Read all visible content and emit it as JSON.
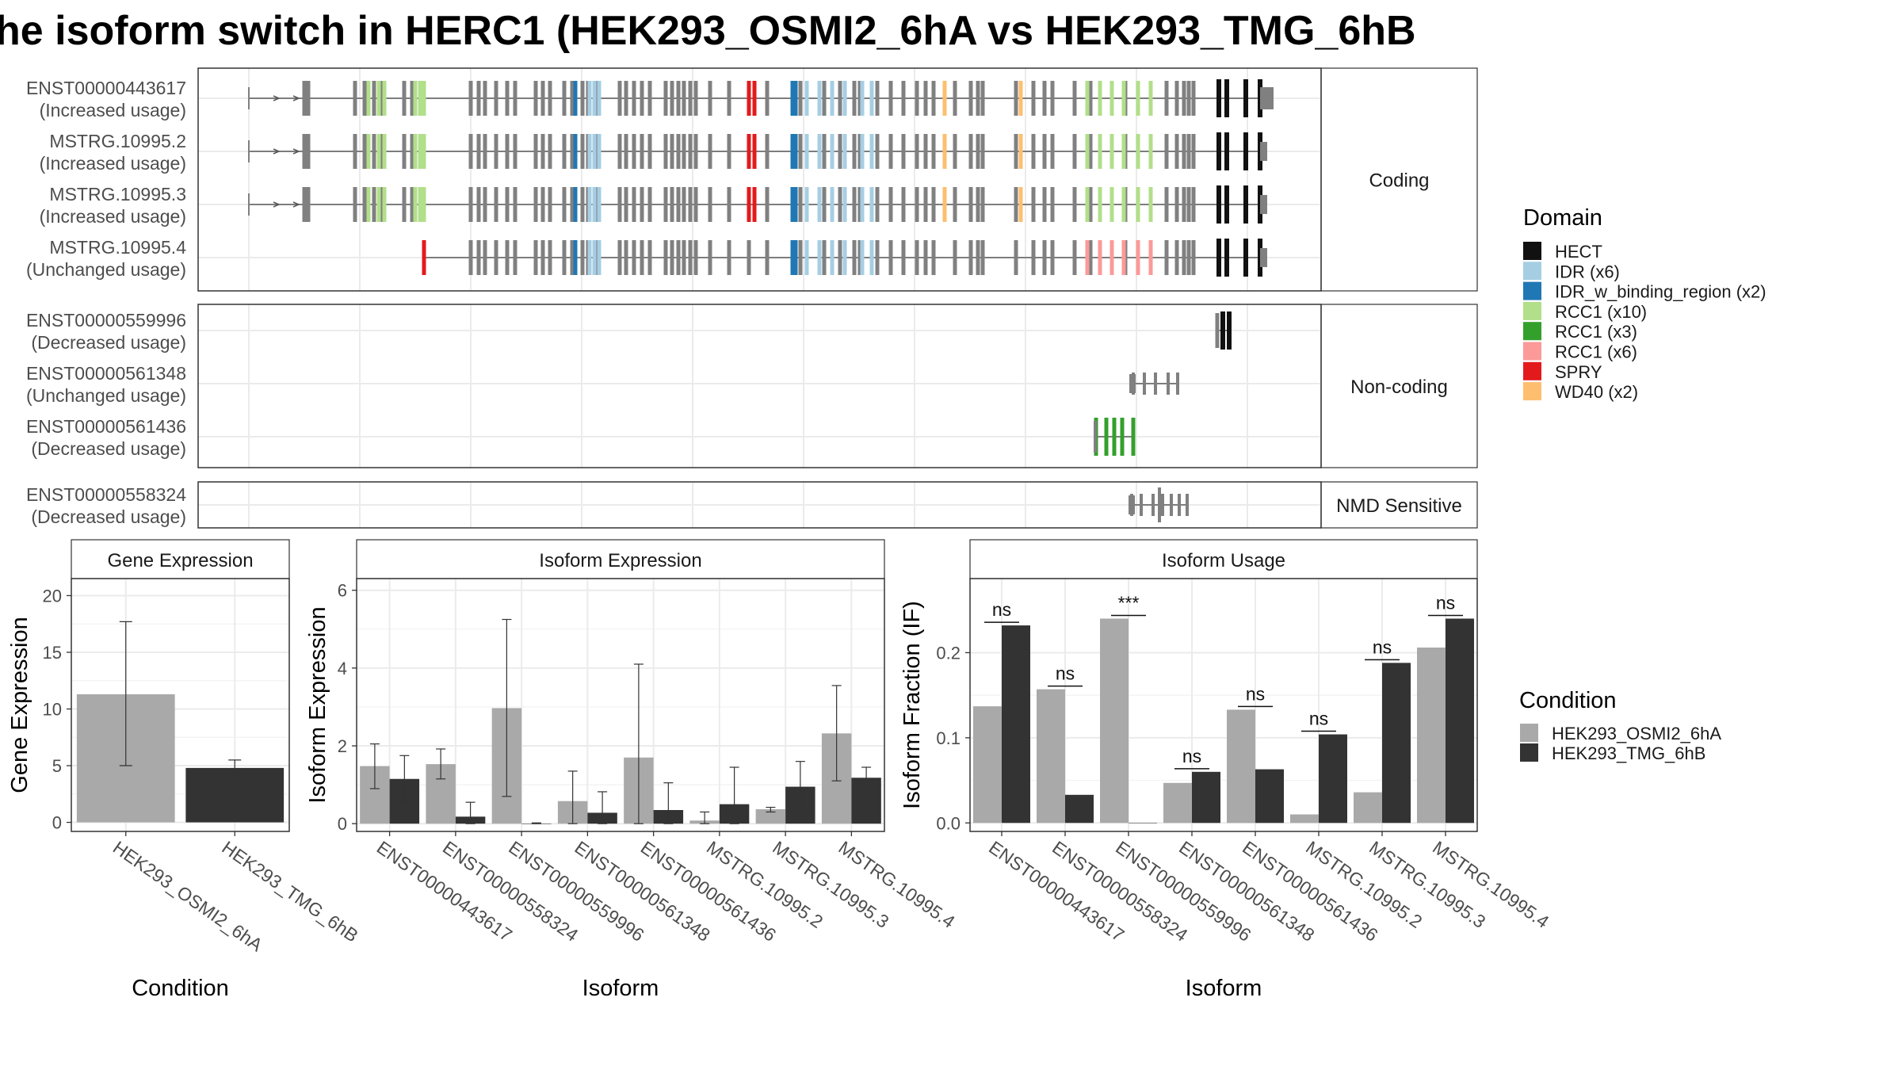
{
  "figure": {
    "title": "he isoform switch in HERC1 (HEK293_OSMI2_6hA vs HEK293_TMG_6hB"
  },
  "transcript_panel": {
    "groups": [
      {
        "label": "Coding",
        "rows": [
          {
            "name": "ENST00000443617",
            "usage": "(Increased usage)"
          },
          {
            "name": "MSTRG.10995.2",
            "usage": "(Increased usage)"
          },
          {
            "name": "MSTRG.10995.3",
            "usage": "(Increased usage)"
          },
          {
            "name": "MSTRG.10995.4",
            "usage": "(Unchanged usage)"
          }
        ]
      },
      {
        "label": "Non-coding",
        "rows": [
          {
            "name": "ENST00000559996",
            "usage": "(Decreased usage)"
          },
          {
            "name": "ENST00000561348",
            "usage": "(Unchanged usage)"
          },
          {
            "name": "ENST00000561436",
            "usage": "(Decreased usage)"
          }
        ]
      },
      {
        "label": "NMD Sensitive",
        "rows": [
          {
            "name": "ENST00000558324",
            "usage": "(Decreased usage)"
          }
        ]
      }
    ]
  },
  "domain_legend": {
    "title": "Domain",
    "items": [
      {
        "label": "HECT",
        "color": "#111111"
      },
      {
        "label": "IDR (x6)",
        "color": "#a6cee3"
      },
      {
        "label": "IDR_w_binding_region (x2)",
        "color": "#1f78b4"
      },
      {
        "label": "RCC1 (x10)",
        "color": "#b2df8a"
      },
      {
        "label": "RCC1 (x3)",
        "color": "#33a02c"
      },
      {
        "label": "RCC1 (x6)",
        "color": "#fb9a99"
      },
      {
        "label": "SPRY",
        "color": "#e31a1c"
      },
      {
        "label": "WD40 (x2)",
        "color": "#fdbf6f"
      }
    ]
  },
  "condition_legend": {
    "title": "Condition",
    "items": [
      {
        "label": "HEK293_OSMI2_6hA",
        "color": "#a9a9a9"
      },
      {
        "label": "HEK293_TMG_6hB",
        "color": "#333333"
      }
    ]
  },
  "chart_data": [
    {
      "type": "bar",
      "title": "Gene Expression",
      "xlabel": "Condition",
      "ylabel": "Gene Expression",
      "categories": [
        "HEK293_OSMI2_6hA",
        "HEK293_TMG_6hB"
      ],
      "values": [
        11.3,
        4.8
      ],
      "error_low": [
        5.0,
        4.2
      ],
      "error_high": [
        17.7,
        5.5
      ],
      "colors": [
        "#a9a9a9",
        "#333333"
      ],
      "ylim": [
        -0.8,
        21.5
      ],
      "yticks": [
        0,
        5,
        10,
        15,
        20
      ],
      "grid": true
    },
    {
      "type": "bar",
      "title": "Isoform Expression",
      "xlabel": "Isoform",
      "ylabel": "Isoform Expression",
      "categories": [
        "ENST00000443617",
        "ENST00000558324",
        "ENST00000559996",
        "ENST00000561348",
        "ENST00000561436",
        "MSTRG.10995.2",
        "MSTRG.10995.3",
        "MSTRG.10995.4"
      ],
      "series": [
        {
          "name": "HEK293_OSMI2_6hA",
          "values": [
            1.48,
            1.53,
            2.97,
            0.58,
            1.7,
            0.08,
            0.37,
            2.32
          ],
          "error_low": [
            0.9,
            1.15,
            0.7,
            0.0,
            0.0,
            0.0,
            0.3,
            1.1
          ],
          "error_high": [
            2.05,
            1.92,
            5.25,
            1.35,
            4.1,
            0.3,
            0.42,
            3.55
          ]
        },
        {
          "name": "HEK293_TMG_6hB",
          "values": [
            1.15,
            0.18,
            0.0,
            0.28,
            0.35,
            0.5,
            0.95,
            1.18
          ],
          "error_low": [
            0.55,
            0.0,
            0.0,
            0.0,
            0.0,
            0.0,
            0.3,
            0.9
          ],
          "error_high": [
            1.75,
            0.55,
            0.02,
            0.82,
            1.05,
            1.45,
            1.6,
            1.45
          ]
        }
      ],
      "ylim": [
        -0.2,
        6.3
      ],
      "yticks": [
        0,
        2,
        4,
        6
      ],
      "grid": true
    },
    {
      "type": "bar",
      "title": "Isoform Usage",
      "xlabel": "Isoform",
      "ylabel": "Isoform Fraction (IF)",
      "categories": [
        "ENST00000443617",
        "ENST00000558324",
        "ENST00000559996",
        "ENST00000561348",
        "ENST00000561436",
        "MSTRG.10995.2",
        "MSTRG.10995.3",
        "MSTRG.10995.4"
      ],
      "series": [
        {
          "name": "HEK293_OSMI2_6hA",
          "values": [
            0.137,
            0.157,
            0.24,
            0.047,
            0.133,
            0.01,
            0.036,
            0.206
          ]
        },
        {
          "name": "HEK293_TMG_6hB",
          "values": [
            0.232,
            0.033,
            0.0,
            0.06,
            0.063,
            0.104,
            0.188,
            0.24
          ]
        }
      ],
      "annotations": [
        "ns",
        "ns",
        "***",
        "ns",
        "ns",
        "ns",
        "ns",
        "ns"
      ],
      "ylim": [
        -0.01,
        0.287
      ],
      "yticks": [
        0.0,
        0.1,
        0.2
      ],
      "ytick_labels": [
        "0.0",
        "0.1",
        "0.2"
      ],
      "grid": true
    }
  ]
}
